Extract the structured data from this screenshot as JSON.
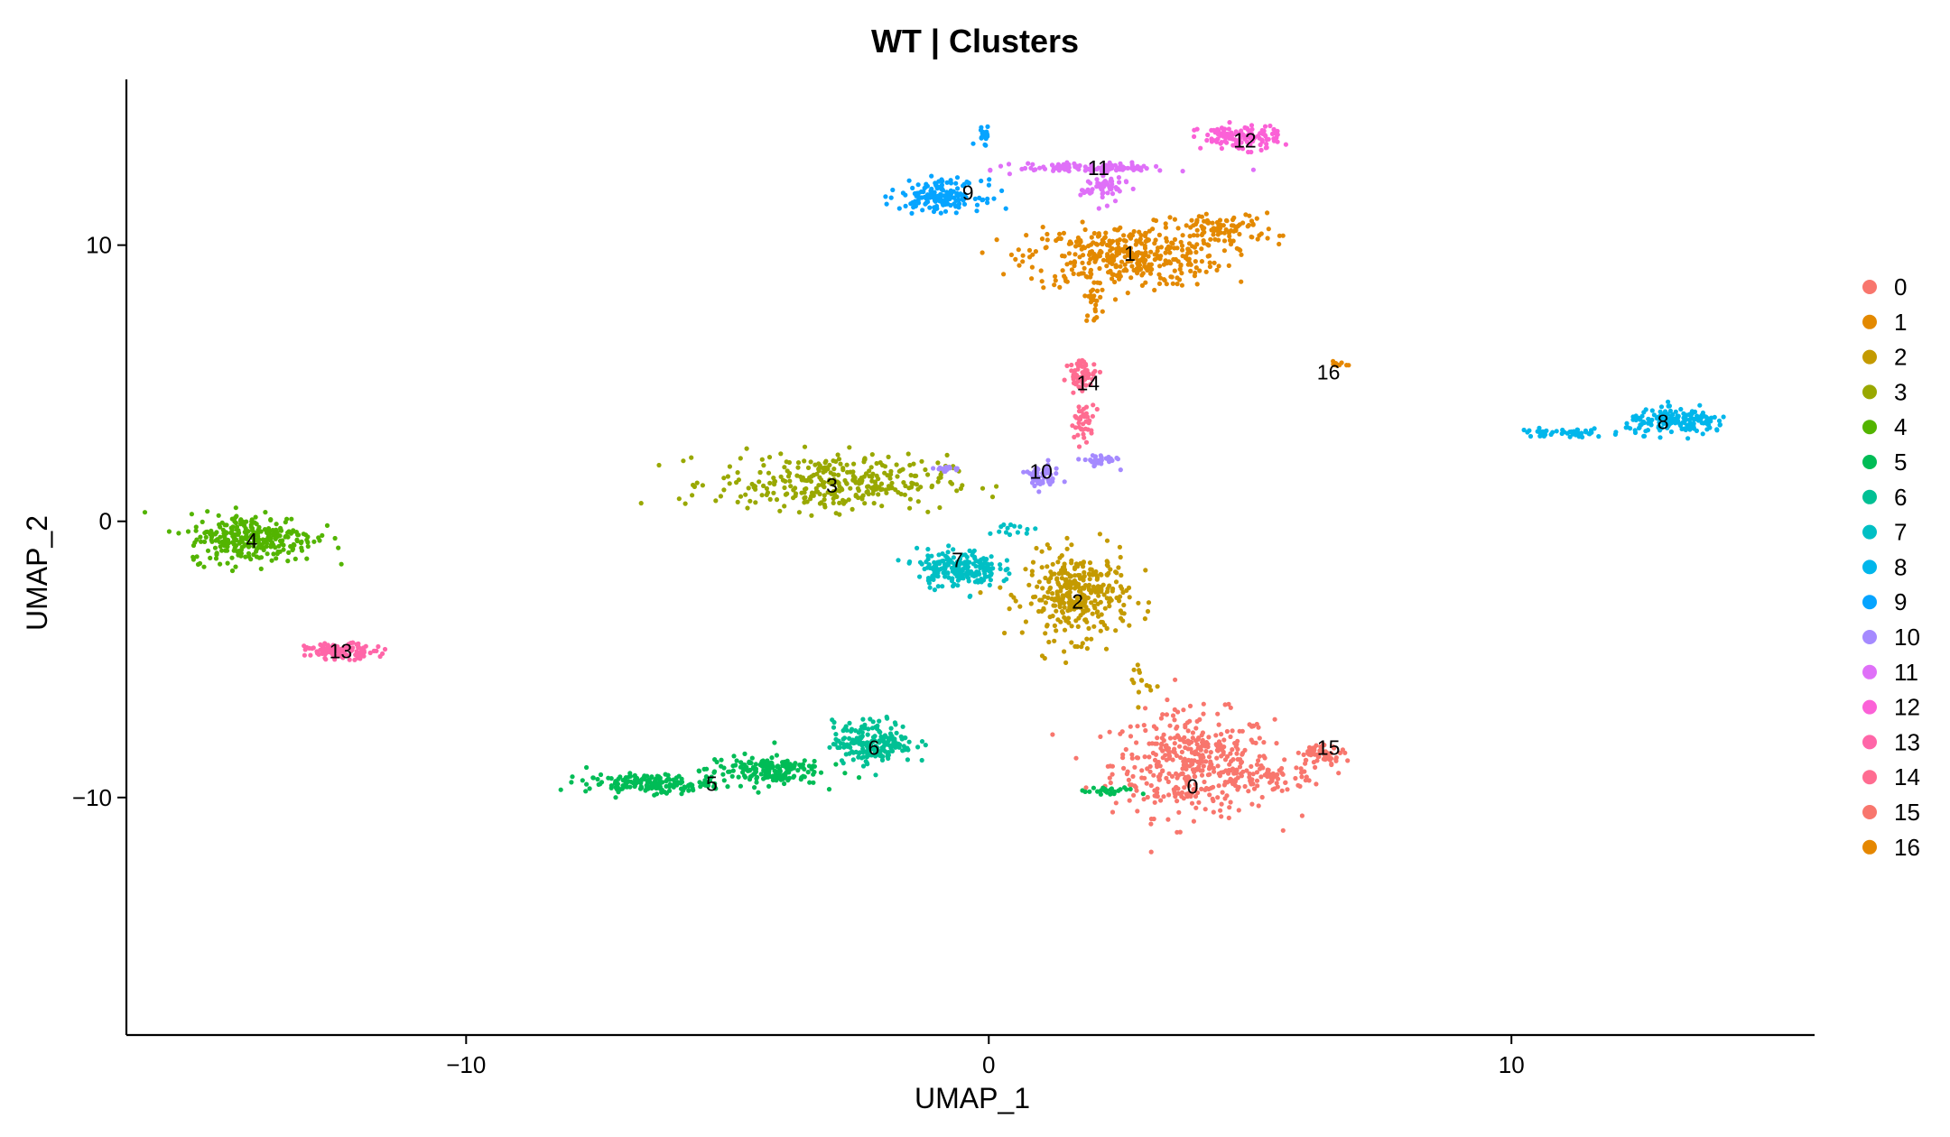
{
  "chart_data": {
    "type": "scatter",
    "title": "WT | Clusters",
    "xlabel": "UMAP_1",
    "ylabel": "UMAP_2",
    "xlim": [
      -16.5,
      15.8
    ],
    "ylim": [
      -18.6,
      16.0
    ],
    "xticks": [
      -10,
      0,
      10
    ],
    "yticks": [
      -10,
      0,
      10
    ],
    "xtick_labels": [
      "−10",
      "0",
      "10"
    ],
    "ytick_labels": [
      "−10",
      "0",
      "10"
    ],
    "grid": false,
    "legend_position": "right",
    "legend": [
      "0",
      "1",
      "2",
      "3",
      "4",
      "5",
      "6",
      "7",
      "8",
      "9",
      "10",
      "11",
      "12",
      "13",
      "14",
      "15",
      "16"
    ],
    "clusters": [
      {
        "name": "0",
        "color": "#F8766D",
        "label_pos": [
          3.9,
          -9.6
        ],
        "centers": [
          [
            3.9,
            -8.8
          ]
        ],
        "spread": [
          [
            1.4,
            1.7
          ]
        ],
        "n": [
          420
        ],
        "extra": [
          [
            5.5,
            -9.3,
            0.9,
            0.5,
            60
          ]
        ]
      },
      {
        "name": "1",
        "color": "#E58700",
        "label_pos": [
          2.7,
          9.7
        ],
        "centers": [
          [
            2.6,
            9.6
          ],
          [
            4.5,
            10.6
          ]
        ],
        "spread": [
          [
            1.7,
            1.0
          ],
          [
            0.9,
            0.5
          ]
        ],
        "n": [
          380,
          90
        ],
        "extra": [
          [
            2.0,
            8.0,
            0.15,
            0.7,
            25
          ]
        ]
      },
      {
        "name": "2",
        "color": "#C99800",
        "label_pos": [
          1.7,
          -2.9
        ],
        "centers": [
          [
            1.7,
            -2.7
          ]
        ],
        "spread": [
          [
            0.9,
            1.4
          ]
        ],
        "n": [
          340
        ],
        "extra": [
          [
            2.9,
            -5.8,
            0.2,
            0.8,
            14
          ]
        ]
      },
      {
        "name": "3",
        "color": "#A3A500",
        "label_pos": [
          -3.0,
          1.3
        ],
        "centers": [
          [
            -3.0,
            1.4
          ]
        ],
        "spread": [
          [
            2.0,
            0.9
          ]
        ],
        "n": [
          330
        ],
        "extra": []
      },
      {
        "name": "4",
        "color": "#6BB100",
        "label_pos": [
          -14.1,
          -0.7
        ],
        "centers": [
          [
            -14.1,
            -0.6
          ]
        ],
        "spread": [
          [
            1.1,
            0.8
          ]
        ],
        "n": [
          300
        ],
        "extra": []
      },
      {
        "name": "5",
        "color": "#00BA38",
        "label_pos": [
          -5.3,
          -9.5
        ],
        "centers": [
          [
            -6.5,
            -9.5
          ],
          [
            -4.3,
            -9.0
          ]
        ],
        "spread": [
          [
            1.1,
            0.3
          ],
          [
            1.0,
            0.5
          ]
        ],
        "n": [
          170,
          170
        ],
        "extra": [
          [
            2.3,
            -9.8,
            0.5,
            0.15,
            25
          ]
        ]
      },
      {
        "name": "6",
        "color": "#00BF7D",
        "label_pos": [
          -2.2,
          -8.2
        ],
        "centers": [
          [
            -2.2,
            -8.0
          ]
        ],
        "spread": [
          [
            0.7,
            0.7
          ]
        ],
        "n": [
          200
        ],
        "extra": []
      },
      {
        "name": "7",
        "color": "#00C0AF",
        "label_pos": [
          -0.6,
          -1.4
        ],
        "centers": [
          [
            -0.6,
            -1.7
          ]
        ],
        "spread": [
          [
            0.7,
            0.6
          ]
        ],
        "n": [
          210
        ],
        "extra": [
          [
            0.5,
            -0.3,
            0.3,
            0.3,
            14
          ]
        ]
      },
      {
        "name": "8",
        "color": "#00BCD8",
        "label_pos": [
          12.9,
          3.6
        ],
        "centers": [
          [
            13.2,
            3.6
          ],
          [
            11.0,
            3.2
          ]
        ],
        "spread": [
          [
            0.9,
            0.4
          ],
          [
            0.8,
            0.15
          ]
        ],
        "n": [
          170,
          50
        ],
        "extra": []
      },
      {
        "name": "9",
        "color": "#00B0F6",
        "label_pos": [
          -0.4,
          11.9
        ],
        "centers": [
          [
            -0.9,
            11.8
          ]
        ],
        "spread": [
          [
            0.7,
            0.5
          ]
        ],
        "n": [
          170
        ],
        "extra": [
          [
            -0.1,
            14.0,
            0.15,
            0.3,
            20
          ]
        ]
      },
      {
        "name": "10",
        "color": "#00A5FF",
        "label_pos": [
          1.0,
          1.8
        ],
        "centers": [
          [
            1.0,
            1.6
          ],
          [
            2.1,
            2.2
          ]
        ],
        "spread": [
          [
            0.3,
            0.4
          ],
          [
            0.3,
            0.2
          ]
        ],
        "n": [
          50,
          35
        ],
        "extra": [
          [
            -0.8,
            1.9,
            0.3,
            0.1,
            15
          ]
        ]
      },
      {
        "name": "11",
        "color": "#E76BF3",
        "label_pos": [
          2.1,
          12.8
        ],
        "centers": [
          [
            2.0,
            12.8
          ],
          [
            2.2,
            12.1
          ]
        ],
        "spread": [
          [
            1.3,
            0.15
          ],
          [
            0.4,
            0.5
          ]
        ],
        "n": [
          110,
          60
        ],
        "extra": []
      },
      {
        "name": "12",
        "color": "#9590FF",
        "label_pos": [
          4.9,
          13.8
        ],
        "centers": [
          [
            4.8,
            13.9
          ]
        ],
        "spread": [
          [
            0.7,
            0.4
          ]
        ],
        "n": [
          120
        ],
        "extra": []
      },
      {
        "name": "13",
        "color": "#D89000",
        "label_pos": [
          -12.4,
          -4.7
        ],
        "centers": [
          [
            -12.4,
            -4.7
          ]
        ],
        "spread": [
          [
            0.6,
            0.25
          ]
        ],
        "n": [
          120
        ],
        "extra": []
      },
      {
        "name": "14",
        "color": "#FF62BC",
        "label_pos": [
          1.9,
          5.0
        ],
        "centers": [
          [
            1.8,
            5.3
          ],
          [
            1.8,
            3.6
          ]
        ],
        "spread": [
          [
            0.25,
            0.5
          ],
          [
            0.2,
            0.6
          ]
        ],
        "n": [
          60,
          40
        ],
        "extra": []
      },
      {
        "name": "15",
        "color": "#FF6C91",
        "label_pos": [
          6.5,
          -8.2
        ],
        "centers": [
          [
            6.4,
            -8.4
          ]
        ],
        "spread": [
          [
            0.4,
            0.3
          ]
        ],
        "n": [
          60
        ],
        "extra": []
      },
      {
        "name": "16",
        "color": "#F8766D",
        "label_pos": [
          6.5,
          5.4
        ],
        "centers": [
          [
            6.7,
            5.7
          ]
        ],
        "spread": [
          [
            0.15,
            0.1
          ]
        ],
        "n": [
          10
        ],
        "extra": []
      }
    ]
  },
  "legend_colors": {
    "0": "#F8766D",
    "1": "#E38900",
    "2": "#C49A00",
    "3": "#99A800",
    "4": "#53B400",
    "5": "#00BC56",
    "6": "#00C094",
    "7": "#00BFC4",
    "8": "#00B6EB",
    "9": "#06A4FF",
    "10": "#A58AFF",
    "11": "#DF70F8",
    "12": "#FB61D7",
    "13": "#FF66A8",
    "14": "#FF6C91",
    "15": "#F8766D",
    "16": "#E58700"
  }
}
